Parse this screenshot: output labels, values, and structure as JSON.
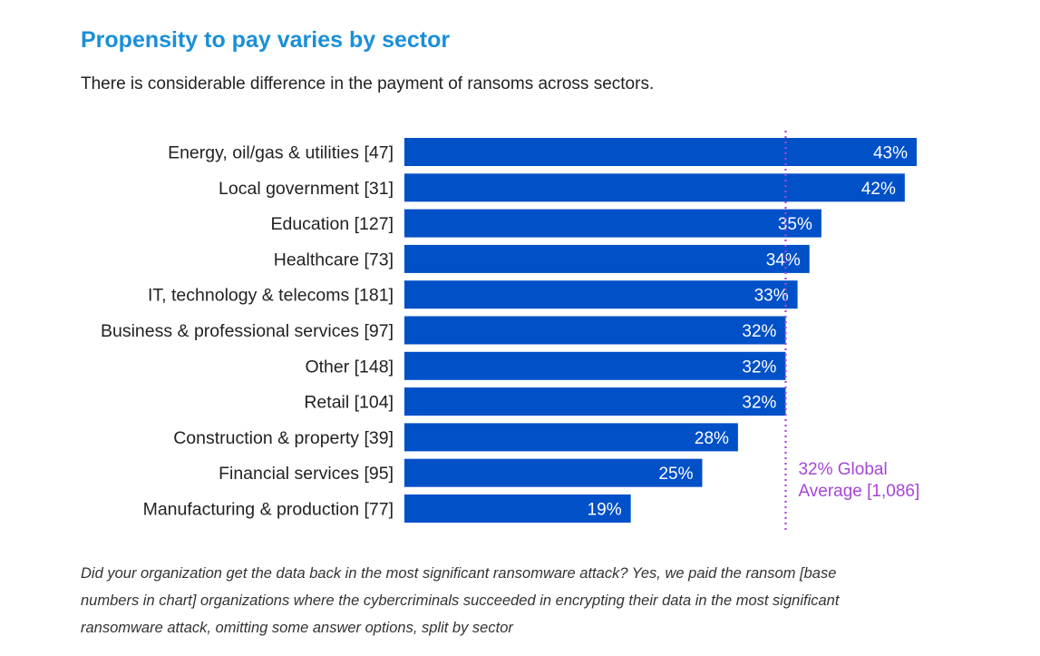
{
  "title": "Propensity to pay varies by sector",
  "subtitle": "There is considerable difference in the payment of ransoms across sectors.",
  "footnote": "Did your organization get the data back in the most significant ransomware attack? Yes, we paid the ransom [base numbers in chart] organizations where the cybercriminals succeeded in encrypting their data in the most significant ransomware attack, omitting some answer options, split by sector",
  "colors": {
    "bar": "#0050c8",
    "bar_label": "#ffffff",
    "average": "#a646d8",
    "title": "#1a8fd8"
  },
  "chart_data": {
    "type": "bar",
    "orientation": "horizontal",
    "categories": [
      "Energy, oil/gas & utilities [47]",
      "Local government [31]",
      "Education [127]",
      "Healthcare [73]",
      "IT, technology & telecoms [181]",
      "Business & professional services [97]",
      "Other [148]",
      "Retail [104]",
      "Construction & property [39]",
      "Financial services [95]",
      "Manufacturing & production [77]"
    ],
    "values": [
      43,
      42,
      35,
      34,
      33,
      32,
      32,
      32,
      28,
      25,
      19
    ],
    "value_labels": [
      "43%",
      "42%",
      "35%",
      "34%",
      "33%",
      "32%",
      "32%",
      "32%",
      "28%",
      "25%",
      "19%"
    ],
    "xlim": [
      0,
      43
    ],
    "grid": false,
    "reference_line": {
      "value": 32,
      "label_lines": [
        "32% Global",
        "Average [1,086]"
      ]
    }
  }
}
